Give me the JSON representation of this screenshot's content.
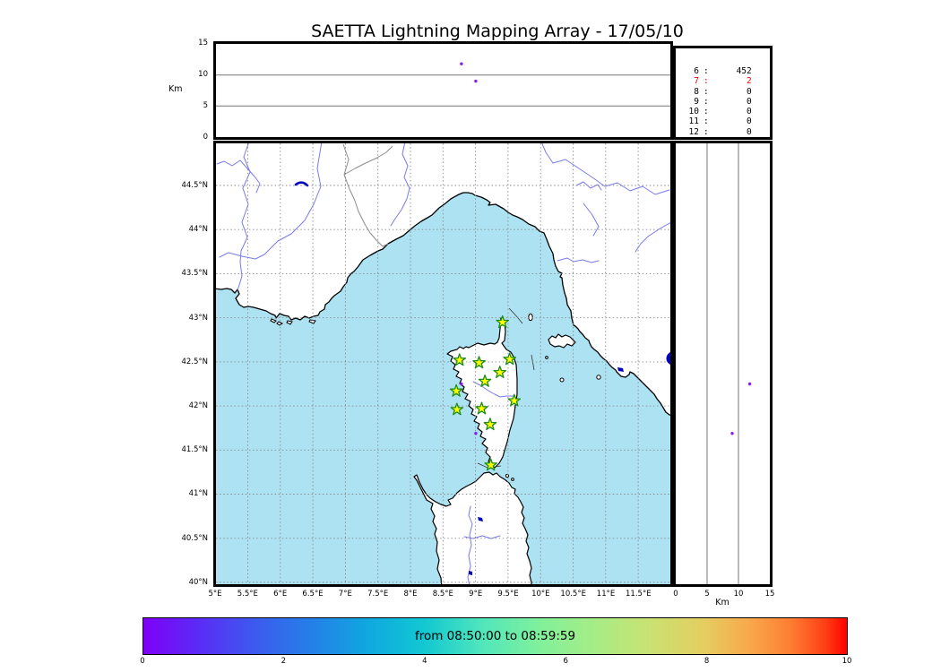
{
  "title": "SAETTA Lightning Mapping Array - 17/05/10",
  "altitude_panel": {
    "axis_label": "Km",
    "ticks": [
      "15",
      "10",
      "5",
      "0"
    ]
  },
  "stats_panel": {
    "rows": [
      {
        "level": "6",
        "count": "452",
        "highlight": false
      },
      {
        "level": "7",
        "count": "2",
        "highlight": true
      },
      {
        "level": "8",
        "count": "0",
        "highlight": false
      },
      {
        "level": "9",
        "count": "0",
        "highlight": false
      },
      {
        "level": "10",
        "count": "0",
        "highlight": false
      },
      {
        "level": "11",
        "count": "0",
        "highlight": false
      },
      {
        "level": "12",
        "count": "0",
        "highlight": false
      }
    ]
  },
  "map": {
    "lat_labels": [
      "44.5°N",
      "44°N",
      "43.5°N",
      "43°N",
      "42.5°N",
      "42°N",
      "41.5°N",
      "41°N",
      "40.5°N",
      "40°N"
    ],
    "lon_labels": [
      "5°E",
      "5.5°E",
      "6°E",
      "6.5°E",
      "7°E",
      "7.5°E",
      "8°E",
      "8.5°E",
      "9°E",
      "9.5°E",
      "10°E",
      "10.5°E",
      "11°E",
      "11.5°E"
    ]
  },
  "right_panel": {
    "axis_label": "Km",
    "ticks": [
      "0",
      "5",
      "10",
      "15"
    ]
  },
  "colorbar": {
    "label": "from 08:50:00 to 08:59:59",
    "ticks": [
      "0",
      "2",
      "4",
      "6",
      "8",
      "10"
    ]
  },
  "colors": {
    "sea": "#ACE2F2",
    "land": "#FFFFFF",
    "coast": "#000000",
    "river": "#7A7AE8",
    "border_line": "#8C8C8C",
    "grid": "#8A8A8A",
    "navy": "#0000C0",
    "station_fill": "#FFFF00",
    "station_stroke": "#1C8C1C",
    "source_dot": "#8A1BEF",
    "highlight_red": "#EE0000"
  },
  "chart_data": {
    "type": "scatter",
    "title": "SAETTA Lightning Mapping Array - 17/05/10",
    "panels": {
      "map": {
        "xlabel_ticks_unit": "°E",
        "ylabel_ticks_unit": "°N",
        "lon_range": [
          5,
          12
        ],
        "lat_range": [
          40,
          45
        ],
        "grid": "dashed 0.5 deg"
      },
      "top": {
        "ylabel": "Km",
        "alt_range_km": [
          0,
          15
        ],
        "x": "longitude"
      },
      "right": {
        "xlabel": "Km",
        "alt_range_km": [
          0,
          15
        ],
        "y": "latitude"
      }
    },
    "stations_lonlat": [
      [
        9.4,
        42.95
      ],
      [
        8.74,
        42.52
      ],
      [
        9.04,
        42.49
      ],
      [
        9.51,
        42.53
      ],
      [
        9.36,
        42.38
      ],
      [
        9.13,
        42.28
      ],
      [
        8.69,
        42.17
      ],
      [
        9.58,
        42.06
      ],
      [
        8.7,
        41.96
      ],
      [
        9.08,
        41.97
      ],
      [
        9.21,
        41.79
      ],
      [
        9.22,
        41.33
      ]
    ],
    "sources": [
      {
        "lon": 8.77,
        "lat": 42.25,
        "alt_km": 11.8
      },
      {
        "lon": 8.99,
        "lat": 41.69,
        "alt_km": 9.0
      }
    ],
    "histogram_counts": {
      "6": 452,
      "7": 2,
      "8": 0,
      "9": 0,
      "10": 0,
      "11": 0,
      "12": 0
    },
    "colorbar": {
      "range": [
        0,
        10
      ],
      "ticks": [
        0,
        2,
        4,
        6,
        8,
        10
      ],
      "label": "from 08:50:00 to 08:59:59",
      "colormap": "rainbow"
    }
  }
}
